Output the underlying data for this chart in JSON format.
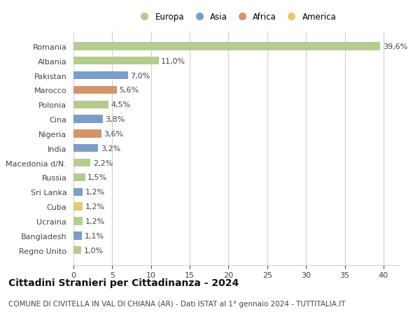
{
  "countries": [
    "Romania",
    "Albania",
    "Pakistan",
    "Marocco",
    "Polonia",
    "Cina",
    "Nigeria",
    "India",
    "Macedonia d/N.",
    "Russia",
    "Sri Lanka",
    "Cuba",
    "Ucraina",
    "Bangladesh",
    "Regno Unito"
  ],
  "values": [
    39.6,
    11.0,
    7.0,
    5.6,
    4.5,
    3.8,
    3.6,
    3.2,
    2.2,
    1.5,
    1.2,
    1.2,
    1.2,
    1.1,
    1.0
  ],
  "continents": [
    "Europa",
    "Europa",
    "Asia",
    "Africa",
    "Europa",
    "Asia",
    "Africa",
    "Asia",
    "Europa",
    "Europa",
    "Asia",
    "America",
    "Europa",
    "Asia",
    "Europa"
  ],
  "colors": {
    "Europa": "#b5cc8e",
    "Asia": "#7b9ec8",
    "Africa": "#d4956a",
    "America": "#e8c96a"
  },
  "legend_order": [
    "Europa",
    "Asia",
    "Africa",
    "America"
  ],
  "title": "Cittadini Stranieri per Cittadinanza - 2024",
  "subtitle": "COMUNE DI CIVITELLA IN VAL DI CHIANA (AR) - Dati ISTAT al 1° gennaio 2024 - TUTTITALIA.IT",
  "xlim": [
    0,
    42
  ],
  "xticks": [
    0,
    5,
    10,
    15,
    20,
    25,
    30,
    35,
    40
  ],
  "background_color": "#ffffff",
  "grid_color": "#d0d0d0",
  "bar_height": 0.55,
  "title_fontsize": 10,
  "subtitle_fontsize": 7.5,
  "label_fontsize": 8,
  "tick_fontsize": 8,
  "legend_fontsize": 8.5
}
